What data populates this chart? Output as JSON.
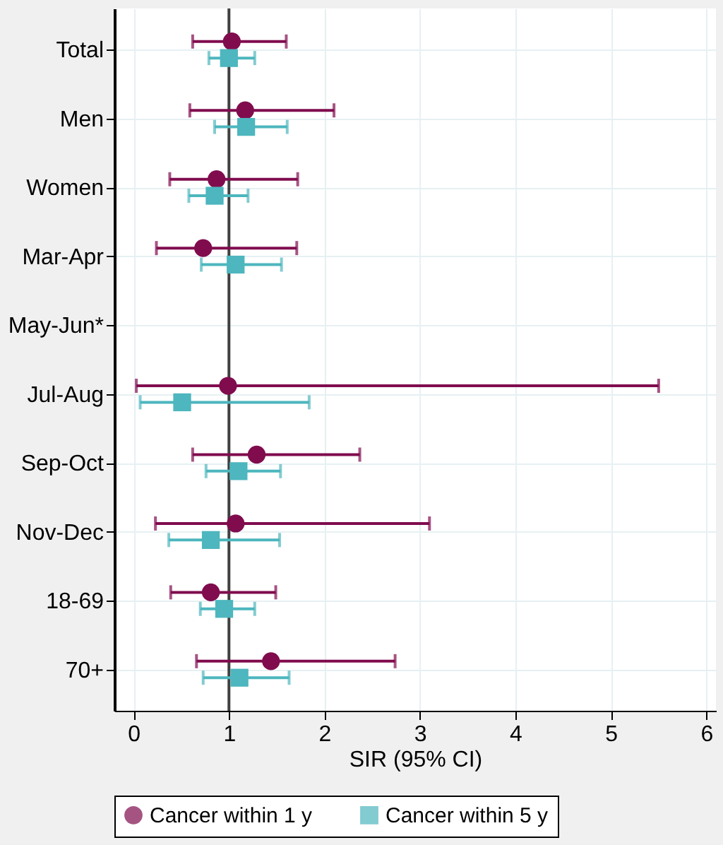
{
  "chart_data": {
    "type": "scatter",
    "orientation": "horizontal",
    "xlabel": "SIR (95% CI)",
    "categories": [
      "Total",
      "Men",
      "Women",
      "Mar-Apr",
      "May-Jun*",
      "Jul-Aug",
      "Sep-Oct",
      "Nov-Dec",
      "18-69",
      "70+"
    ],
    "series": [
      {
        "name": "Cancer within 1 y",
        "color": "#800c4e",
        "marker": "circle",
        "values": [
          1.03,
          1.17,
          0.87,
          0.73,
          null,
          0.99,
          1.29,
          1.07,
          0.81,
          1.44
        ],
        "errors": [
          [
            0.62,
            1.6
          ],
          [
            0.59,
            2.1
          ],
          [
            0.38,
            1.72
          ],
          [
            0.24,
            1.71
          ],
          null,
          [
            0.03,
            5.5
          ],
          [
            0.62,
            2.37
          ],
          [
            0.23,
            3.1
          ],
          [
            0.39,
            1.49
          ],
          [
            0.66,
            2.74
          ]
        ]
      },
      {
        "name": "Cancer within 5 y",
        "color": "#4db6be",
        "marker": "square",
        "values": [
          1.0,
          1.18,
          0.85,
          1.07,
          null,
          0.51,
          1.1,
          0.81,
          0.95,
          1.11
        ],
        "errors": [
          [
            0.79,
            1.27
          ],
          [
            0.85,
            1.61
          ],
          [
            0.58,
            1.2
          ],
          [
            0.71,
            1.55
          ],
          null,
          [
            0.07,
            1.84
          ],
          [
            0.76,
            1.54
          ],
          [
            0.37,
            1.53
          ],
          [
            0.7,
            1.27
          ],
          [
            0.73,
            1.63
          ]
        ]
      }
    ],
    "xlim": [
      -0.2,
      6.1
    ],
    "xticks": [
      0,
      1,
      2,
      3,
      4,
      5,
      6
    ],
    "ref_lines": [
      {
        "axis": "x",
        "value": 1,
        "color": "#404040"
      }
    ],
    "grid": true,
    "legend": "bottom"
  }
}
